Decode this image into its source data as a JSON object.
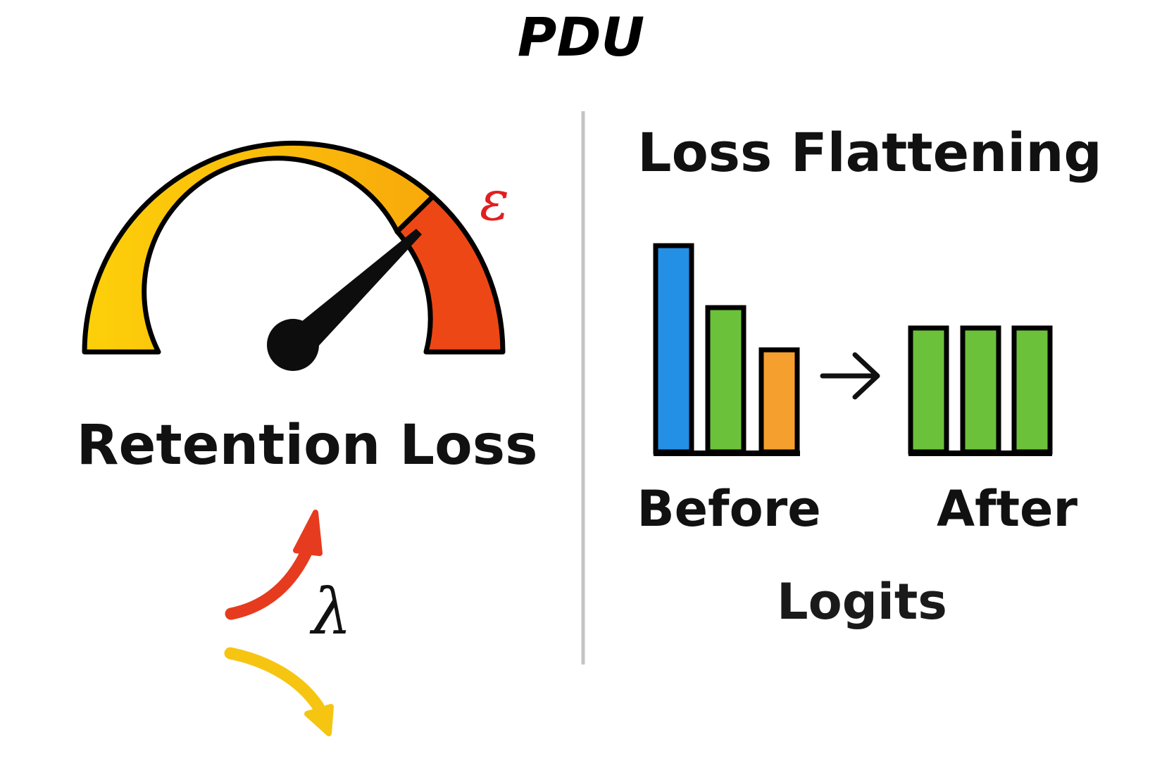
{
  "title": "PDU",
  "left_panel": {
    "gauge_symbol": "ε",
    "label": "Retention Loss",
    "lambda_symbol": "λ"
  },
  "right_panel": {
    "heading": "Loss Flattening",
    "before_label": "Before",
    "after_label": "After",
    "caption": "Logits"
  },
  "colors": {
    "gauge_yellow": "#fdc80a",
    "gauge_orange": "#f9a90a",
    "gauge_red": "#ee4716",
    "bar_blue": "#2390e6",
    "bar_green": "#6cc13a",
    "bar_orange": "#f5a02e",
    "arrow_red": "#e63b1e",
    "arrow_yellow": "#f6c512",
    "divider": "#c4c4c4"
  },
  "icons": {
    "gauge": "speedometer-gauge-icon",
    "arrow_up": "curved-arrow-up-icon",
    "arrow_down": "curved-arrow-down-icon",
    "transform_arrow": "right-arrow-icon"
  }
}
